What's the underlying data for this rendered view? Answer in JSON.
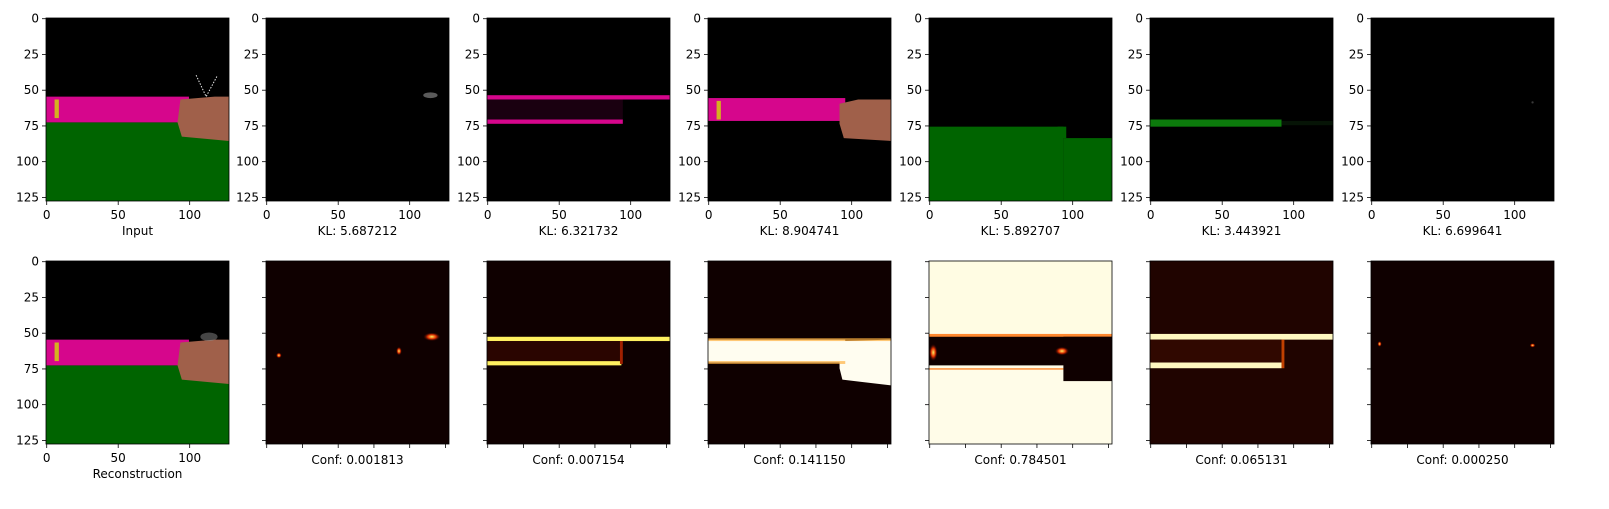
{
  "chart_data": {
    "type": "image-grid",
    "axis": {
      "xlim": [
        0,
        127
      ],
      "ylim": [
        127,
        0
      ],
      "ticks": [
        0,
        25,
        50,
        75,
        100,
        125
      ],
      "xticks": [
        0,
        50,
        100
      ]
    },
    "colors": {
      "magenta": "#d6068c",
      "green": "#006400",
      "tan": "#a0604a",
      "yellow": "#d4b020",
      "heat_low": "#0f0000",
      "heat_high": "#fffce8"
    },
    "rows": [
      {
        "name": "components",
        "panels": [
          {
            "label": "Input",
            "kind": "input"
          },
          {
            "label": "KL: 5.687212",
            "kind": "slot1"
          },
          {
            "label": "KL: 6.321732",
            "kind": "slot2"
          },
          {
            "label": "KL: 8.904741",
            "kind": "slot3"
          },
          {
            "label": "KL: 5.892707",
            "kind": "slot4"
          },
          {
            "label": "KL: 3.443921",
            "kind": "slot5"
          },
          {
            "label": "KL: 6.699641",
            "kind": "slot6"
          }
        ]
      },
      {
        "name": "masks",
        "panels": [
          {
            "label": "Reconstruction",
            "kind": "recon"
          },
          {
            "label": "Conf: 0.001813",
            "kind": "mask1"
          },
          {
            "label": "Conf: 0.007154",
            "kind": "mask2"
          },
          {
            "label": "Conf: 0.141150",
            "kind": "mask3"
          },
          {
            "label": "Conf: 0.784501",
            "kind": "mask4"
          },
          {
            "label": "Conf: 0.065131",
            "kind": "mask5"
          },
          {
            "label": "Conf: 0.000250",
            "kind": "mask6"
          }
        ]
      }
    ]
  }
}
